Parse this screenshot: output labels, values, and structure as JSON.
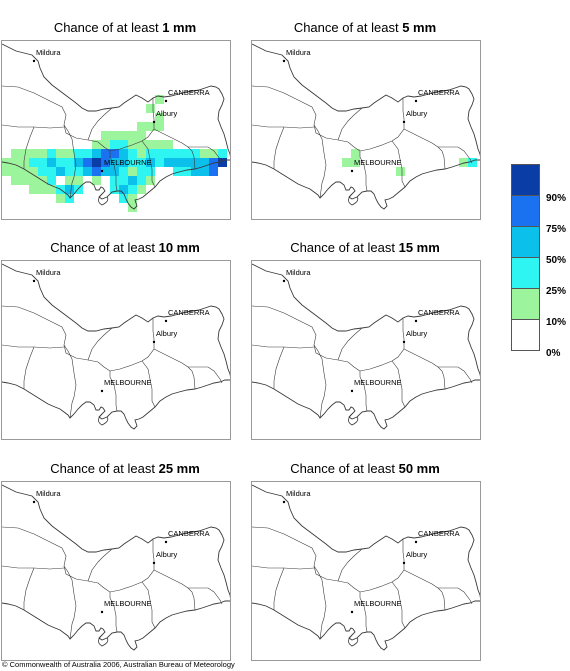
{
  "title_prefix": "Chance of at least ",
  "panels": [
    {
      "threshold": "1 mm"
    },
    {
      "threshold": "5 mm"
    },
    {
      "threshold": "10 mm"
    },
    {
      "threshold": "15 mm"
    },
    {
      "threshold": "25 mm"
    },
    {
      "threshold": "50 mm"
    }
  ],
  "places": {
    "mildura": "Mildura",
    "canberra": "CANBERRA",
    "albury": "Albury",
    "melbourne": "MELBOURNE"
  },
  "legend": {
    "bins": [
      {
        "label": "90%",
        "color": "#0a3ea6"
      },
      {
        "label": "75%",
        "color": "#1a72f0"
      },
      {
        "label": "50%",
        "color": "#0cc0ec"
      },
      {
        "label": "25%",
        "color": "#2ef4f2"
      },
      {
        "label": "10%",
        "color": "#9cf49c"
      },
      {
        "label": "0%",
        "color": "#ffffff"
      }
    ]
  },
  "copyright": "© Commonwealth of Australia 2006, Australian Bureau of Meteorology",
  "probability_fields": {
    "1 mm": {
      "0": 0,
      "1": 0,
      "2": 0,
      "3": 0,
      "4": 0,
      "5": 0,
      "6": 0,
      "7": 0,
      "8": 0,
      "9": 0,
      "10": 0,
      "11": 0,
      "12": 0,
      "13": 0,
      "14": 0,
      "15": 0,
      "16": 0,
      "17": 0,
      "18": 0
    },
    "5 mm": {
      "0": 0
    },
    "10 mm": {},
    "15 mm": {},
    "25 mm": {},
    "50 mm": {}
  }
}
